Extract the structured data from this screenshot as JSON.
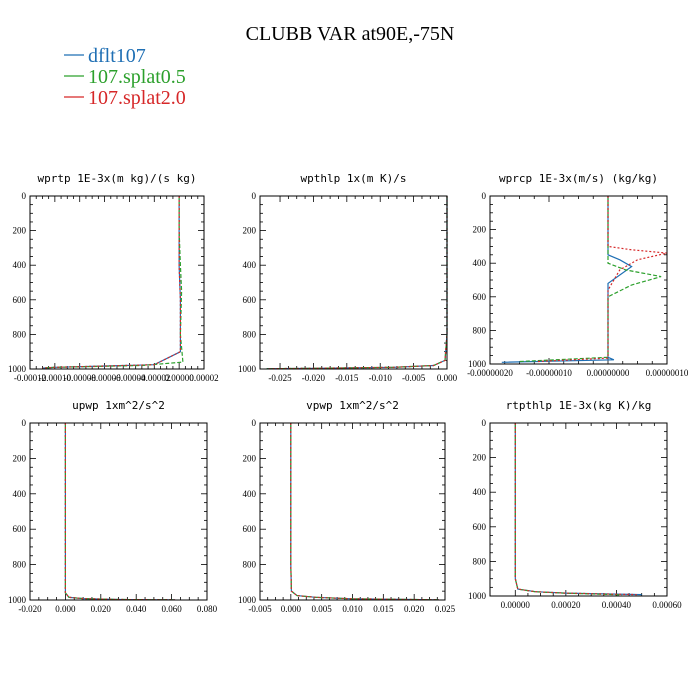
{
  "figure": {
    "title": "CLUBB VAR at90E,-75N",
    "legend": [
      {
        "label": "dflt107",
        "color": "#1f6fb4"
      },
      {
        "label": "107.splat0.5",
        "color": "#2ca02c"
      },
      {
        "label": "107.splat2.0",
        "color": "#d62728"
      }
    ]
  },
  "chart_data": [
    {
      "type": "line",
      "title": "wprtp  1E-3x(m kg)/(s kg)",
      "xlim": [
        -0.00012,
        2e-05
      ],
      "ylim": [
        1000,
        0
      ],
      "xticks": [
        -0.00012,
        -0.0001,
        -8e-05,
        -6e-05,
        -4e-05,
        -2e-05,
        0.0,
        2e-05
      ],
      "xtick_labels": [
        "-0.00012",
        "-0.00010",
        "-0.00008",
        "-0.00006",
        "-0.00004",
        "-0.00002",
        "0.00000",
        "0.00002"
      ],
      "yticks": [
        0,
        200,
        400,
        600,
        800,
        1000
      ],
      "ytick_labels": [
        "0",
        "200",
        "400",
        "600",
        "800",
        "1000"
      ],
      "series": [
        {
          "name": "dflt107",
          "color": "#1f6fb4",
          "dash": "none",
          "x": [
            0.0,
            0.0,
            0.0,
            1e-06,
            1e-06,
            -2e-05,
            -0.0001,
            -0.00011
          ],
          "y": [
            0,
            200,
            400,
            600,
            900,
            975,
            990,
            995
          ]
        },
        {
          "name": "107.splat0.5",
          "color": "#2ca02c",
          "dash": "4,2",
          "x": [
            0.0,
            0.0,
            1e-06,
            2e-06,
            1e-06,
            3e-06,
            -3e-05,
            -0.0001,
            -0.00011
          ],
          "y": [
            0,
            200,
            400,
            550,
            800,
            960,
            980,
            990,
            995
          ]
        },
        {
          "name": "107.splat2.0",
          "color": "#d62728",
          "dash": "2,2",
          "x": [
            0.0,
            0.0,
            0.0,
            1e-06,
            1e-06,
            -2e-05,
            -0.0001,
            -0.00011
          ],
          "y": [
            0,
            200,
            400,
            600,
            900,
            975,
            990,
            995
          ]
        }
      ]
    },
    {
      "type": "line",
      "title": "wpthlp  1x(m K)/s",
      "xlim": [
        -0.028,
        0.0
      ],
      "ylim": [
        1000,
        0
      ],
      "xticks": [
        -0.025,
        -0.02,
        -0.015,
        -0.01,
        -0.005,
        0.0
      ],
      "xtick_labels": [
        "-0.025",
        "-0.020",
        "-0.015",
        "-0.010",
        "-0.005",
        "0.000"
      ],
      "yticks": [
        0,
        200,
        400,
        600,
        800,
        1000
      ],
      "ytick_labels": [
        "0",
        "200",
        "400",
        "600",
        "800",
        "1000"
      ],
      "series": [
        {
          "name": "dflt107",
          "color": "#1f6fb4",
          "dash": "none",
          "x": [
            0.0,
            0.0,
            -0.0003,
            -0.002,
            -0.008,
            -0.02,
            -0.027
          ],
          "y": [
            0,
            800,
            950,
            980,
            990,
            996,
            998
          ]
        },
        {
          "name": "107.splat0.5",
          "color": "#2ca02c",
          "dash": "4,2",
          "x": [
            0.0,
            0.0,
            -0.0003,
            -0.002,
            -0.008,
            -0.02,
            -0.027
          ],
          "y": [
            0,
            800,
            950,
            980,
            990,
            996,
            998
          ]
        },
        {
          "name": "107.splat2.0",
          "color": "#d62728",
          "dash": "2,2",
          "x": [
            0.0,
            0.0,
            -0.0003,
            -0.002,
            -0.008,
            -0.02,
            -0.027
          ],
          "y": [
            0,
            800,
            950,
            980,
            990,
            996,
            998
          ]
        }
      ]
    },
    {
      "type": "line",
      "title": "wprcp  1E-3x(m/s) (kg/kg)",
      "xlim": [
        -2e-07,
        1e-07
      ],
      "ylim": [
        1000,
        0
      ],
      "xticks": [
        -2e-07,
        -1e-07,
        0.0,
        1e-07
      ],
      "xtick_labels": [
        "-0.00000020",
        "-0.00000010",
        "0.00000000",
        "0.00000010"
      ],
      "yticks": [
        0,
        200,
        400,
        600,
        800,
        1000
      ],
      "ytick_labels": [
        "0",
        "200",
        "400",
        "600",
        "800",
        "1000"
      ],
      "series": [
        {
          "name": "dflt107",
          "color": "#1f6fb4",
          "dash": "none",
          "x": [
            0.0,
            0.0,
            0.0,
            2e-08,
            4e-08,
            2e-08,
            0.0,
            0.0,
            0.0,
            1e-08,
            -1.8e-07
          ],
          "y": [
            0,
            300,
            350,
            380,
            420,
            470,
            520,
            900,
            960,
            975,
            990
          ]
        },
        {
          "name": "107.splat0.5",
          "color": "#2ca02c",
          "dash": "4,2",
          "x": [
            0.0,
            0.0,
            0.0,
            3e-08,
            9e-08,
            4e-08,
            0.0,
            0.0,
            0.0,
            -1.5e-07
          ],
          "y": [
            0,
            340,
            400,
            440,
            480,
            530,
            600,
            900,
            960,
            985
          ]
        },
        {
          "name": "107.splat2.0",
          "color": "#d62728",
          "dash": "2,2",
          "x": [
            0.0,
            0.0,
            4e-08,
            1e-07,
            5e-08,
            2e-08,
            1e-08,
            0.0,
            0.0,
            0.0,
            -1.2e-07
          ],
          "y": [
            0,
            300,
            320,
            340,
            380,
            440,
            500,
            560,
            900,
            965,
            985
          ]
        }
      ]
    },
    {
      "type": "line",
      "title": "upwp  1xm^2/s^2",
      "xlim": [
        -0.02,
        0.08
      ],
      "ylim": [
        1000,
        0
      ],
      "xticks": [
        -0.02,
        0.0,
        0.02,
        0.04,
        0.06,
        0.08
      ],
      "xtick_labels": [
        "-0.020",
        "0.000",
        "0.020",
        "0.040",
        "0.060",
        "0.080"
      ],
      "yticks": [
        0,
        200,
        400,
        600,
        800,
        1000
      ],
      "ytick_labels": [
        "0",
        "200",
        "400",
        "600",
        "800",
        "1000"
      ],
      "series": [
        {
          "name": "dflt107",
          "color": "#1f6fb4",
          "dash": "none",
          "x": [
            0.0,
            0.0,
            0.0,
            0.002,
            0.01,
            0.03,
            0.062
          ],
          "y": [
            0,
            600,
            960,
            985,
            992,
            997,
            999
          ]
        },
        {
          "name": "107.splat0.5",
          "color": "#2ca02c",
          "dash": "4,2",
          "x": [
            0.0,
            0.0,
            0.0,
            0.002,
            0.01,
            0.03,
            0.062
          ],
          "y": [
            0,
            600,
            960,
            985,
            992,
            997,
            999
          ]
        },
        {
          "name": "107.splat2.0",
          "color": "#d62728",
          "dash": "2,2",
          "x": [
            0.0,
            0.0,
            0.0,
            0.002,
            0.01,
            0.03,
            0.062
          ],
          "y": [
            0,
            600,
            960,
            985,
            992,
            997,
            999
          ]
        }
      ]
    },
    {
      "type": "line",
      "title": "vpwp  1xm^2/s^2",
      "xlim": [
        -0.005,
        0.025
      ],
      "ylim": [
        1000,
        0
      ],
      "xticks": [
        -0.005,
        0.0,
        0.005,
        0.01,
        0.015,
        0.02,
        0.025
      ],
      "xtick_labels": [
        "-0.005",
        "0.000",
        "0.005",
        "0.010",
        "0.015",
        "0.020",
        "0.025"
      ],
      "yticks": [
        0,
        200,
        400,
        600,
        800,
        1000
      ],
      "ytick_labels": [
        "0",
        "200",
        "400",
        "600",
        "800",
        "1000"
      ],
      "series": [
        {
          "name": "dflt107",
          "color": "#1f6fb4",
          "dash": "none",
          "x": [
            0.0,
            0.0,
            0.0001,
            0.001,
            0.004,
            0.01,
            0.024
          ],
          "y": [
            0,
            800,
            950,
            975,
            985,
            993,
            999
          ]
        },
        {
          "name": "107.splat0.5",
          "color": "#2ca02c",
          "dash": "4,2",
          "x": [
            0.0,
            0.0,
            0.0001,
            0.001,
            0.004,
            0.01,
            0.024
          ],
          "y": [
            0,
            800,
            950,
            975,
            985,
            993,
            999
          ]
        },
        {
          "name": "107.splat2.0",
          "color": "#d62728",
          "dash": "2,2",
          "x": [
            0.0,
            0.0,
            0.0001,
            0.001,
            0.004,
            0.01,
            0.024
          ],
          "y": [
            0,
            800,
            950,
            975,
            985,
            993,
            999
          ]
        }
      ]
    },
    {
      "type": "line",
      "title": "rtpthlp  1E-3x(kg K)/kg",
      "xlim": [
        -0.0001,
        0.0006
      ],
      "ylim": [
        1000,
        0
      ],
      "xticks": [
        0.0,
        0.0002,
        0.0004,
        0.0006
      ],
      "xtick_labels": [
        "0.00000",
        "0.00020",
        "0.00040",
        "0.00060"
      ],
      "yticks": [
        0,
        200,
        400,
        600,
        800,
        1000
      ],
      "ytick_labels": [
        "0",
        "200",
        "400",
        "600",
        "800",
        "1000"
      ],
      "series": [
        {
          "name": "dflt107",
          "color": "#1f6fb4",
          "dash": "none",
          "x": [
            0.0,
            0.0,
            1e-05,
            8e-05,
            0.0002,
            0.00035,
            0.0005
          ],
          "y": [
            0,
            900,
            960,
            975,
            983,
            988,
            992
          ]
        },
        {
          "name": "107.splat0.5",
          "color": "#2ca02c",
          "dash": "4,2",
          "x": [
            0.0,
            0.0,
            1e-05,
            8e-05,
            0.0002,
            0.00032,
            0.00042
          ],
          "y": [
            0,
            900,
            960,
            976,
            984,
            989,
            993
          ]
        },
        {
          "name": "107.splat2.0",
          "color": "#d62728",
          "dash": "2,2",
          "x": [
            0.0,
            0.0,
            1e-05,
            8e-05,
            0.0002,
            0.00034,
            0.00048
          ],
          "y": [
            0,
            900,
            960,
            975,
            983,
            988,
            992
          ]
        }
      ]
    }
  ]
}
